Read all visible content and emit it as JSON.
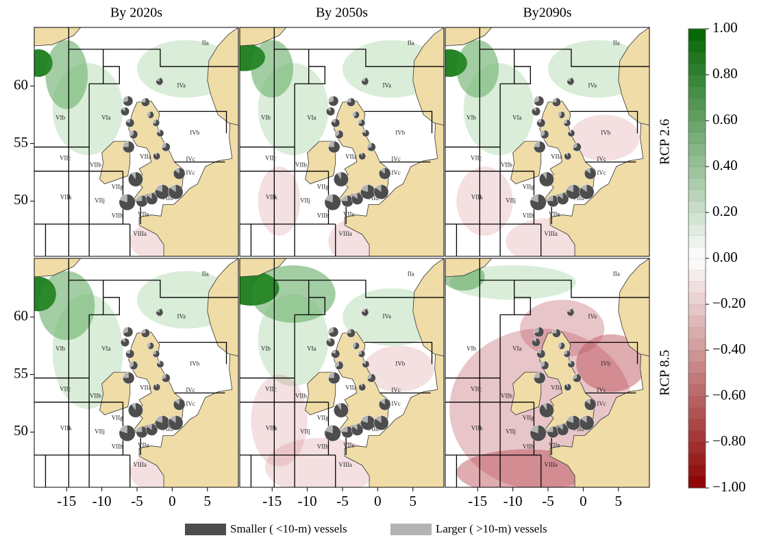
{
  "chart_data": {
    "type": "map",
    "panel_titles": [
      "By 2020s",
      "By 2050s",
      "By2090s"
    ],
    "row_labels": [
      "RCP 2.6",
      "RCP 8.5"
    ],
    "xlim": [
      -19.6,
      9.4
    ],
    "ylim": [
      45.2,
      65.1
    ],
    "xticks": [
      -15,
      -10,
      -5,
      0,
      5
    ],
    "yticks": [
      50,
      55,
      60
    ],
    "area_labels": [
      "IIa",
      "IVa",
      "IVb",
      "IVc",
      "IVc",
      "VIa",
      "VIb",
      "VIIa",
      "VIIb",
      "VIIc",
      "VIIk",
      "VIIj",
      "VIIg",
      "VIIh",
      "VIIe",
      "VIId",
      "VIIIa"
    ],
    "colorbar": {
      "lim": [
        -1,
        1
      ],
      "colormap": [
        "#8b0000",
        "#ffffff",
        "#006400"
      ],
      "ticks": [
        {
          "value": 1,
          "label": "1.00"
        },
        {
          "value": 0.8,
          "label": "0.80"
        },
        {
          "value": 0.6,
          "label": "0.60"
        },
        {
          "value": 0.4,
          "label": "0.40"
        },
        {
          "value": 0.2,
          "label": "0.20"
        },
        {
          "value": 0,
          "label": "0.00"
        },
        {
          "value": -0.2,
          "label": "−0.20"
        },
        {
          "value": -0.4,
          "label": "−0.40"
        },
        {
          "value": -0.6,
          "label": "−0.60"
        },
        {
          "value": -0.8,
          "label": "−0.80"
        },
        {
          "value": -1,
          "label": "−1.00"
        }
      ]
    },
    "pie_series": [
      {
        "name": "Smaller ( <10-m) vessels",
        "color": "#4d4d4d"
      },
      {
        "name": "Larger ( >10-m) vessels",
        "color": "#b3b3b3"
      }
    ],
    "ports": [
      {
        "lon": -1.8,
        "lat": 60.4,
        "size": 2,
        "values": [
          80,
          20
        ]
      },
      {
        "lon": -6.3,
        "lat": 58.7,
        "size": 4,
        "values": [
          70,
          30
        ]
      },
      {
        "lon": -6.7,
        "lat": 57.8,
        "size": 3,
        "values": [
          85,
          15
        ]
      },
      {
        "lon": -3.8,
        "lat": 58.6,
        "size": 3,
        "values": [
          75,
          25
        ]
      },
      {
        "lon": -3.1,
        "lat": 57.5,
        "size": 2,
        "values": [
          60,
          40
        ]
      },
      {
        "lon": -2.3,
        "lat": 56.8,
        "size": 2,
        "values": [
          70,
          30
        ]
      },
      {
        "lon": -6.0,
        "lat": 56.8,
        "size": 3,
        "values": [
          80,
          20
        ]
      },
      {
        "lon": -5.5,
        "lat": 55.8,
        "size": 3,
        "values": [
          65,
          35
        ]
      },
      {
        "lon": -6.2,
        "lat": 54.7,
        "size": 5,
        "values": [
          75,
          25
        ]
      },
      {
        "lon": -1.7,
        "lat": 55.9,
        "size": 2,
        "values": [
          80,
          20
        ]
      },
      {
        "lon": -0.9,
        "lat": 54.7,
        "size": 3,
        "values": [
          70,
          30
        ]
      },
      {
        "lon": -2.2,
        "lat": 53.9,
        "size": 2,
        "values": [
          90,
          10
        ]
      },
      {
        "lon": 1.0,
        "lat": 52.4,
        "size": 5,
        "values": [
          85,
          15
        ]
      },
      {
        "lon": -5.2,
        "lat": 51.9,
        "size": 7,
        "values": [
          90,
          10
        ]
      },
      {
        "lon": -6.4,
        "lat": 49.9,
        "size": 8,
        "values": [
          80,
          20
        ]
      },
      {
        "lon": -4.3,
        "lat": 50.0,
        "size": 5,
        "values": [
          75,
          25
        ]
      },
      {
        "lon": -2.9,
        "lat": 50.2,
        "size": 5,
        "values": [
          85,
          15
        ]
      },
      {
        "lon": -1.4,
        "lat": 50.8,
        "size": 7,
        "values": [
          80,
          20
        ]
      },
      {
        "lon": 0.5,
        "lat": 50.8,
        "size": 7,
        "values": [
          85,
          15
        ]
      }
    ]
  }
}
